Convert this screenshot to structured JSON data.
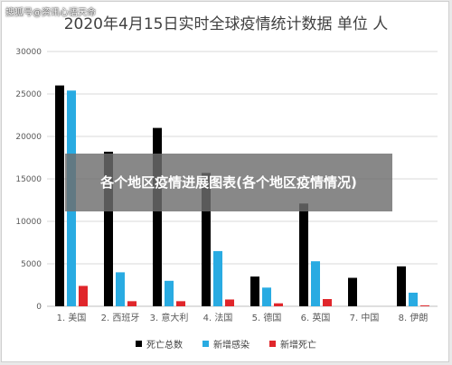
{
  "watermark": "搜狐号@资讯心语天命",
  "overlay_text": "各个地区疫情进展图表(各个地区疫情情况)",
  "colors": {
    "deaths": "#000000",
    "new_cases": "#29abe2",
    "new_deaths": "#e0262b"
  },
  "chart_data": {
    "type": "bar",
    "title": "2020年4月15日实时全球疫情统计数据 单位 人",
    "categories": [
      "1. 美国",
      "2. 西班牙",
      "3. 意大利",
      "4. 法国",
      "5. 德国",
      "6. 英国",
      "7. 中国",
      "8. 伊朗"
    ],
    "series": [
      {
        "name": "死亡总数",
        "values": [
          26000,
          18200,
          21000,
          15700,
          3500,
          12100,
          3350,
          4700
        ]
      },
      {
        "name": "新增感染",
        "values": [
          25400,
          4000,
          3000,
          6500,
          2200,
          5300,
          0,
          1600
        ]
      },
      {
        "name": "新增死亡",
        "values": [
          2400,
          600,
          600,
          800,
          350,
          850,
          0,
          100
        ]
      }
    ],
    "yticks": [
      0,
      5000,
      10000,
      15000,
      20000,
      25000,
      30000
    ],
    "ylim": [
      0,
      30000
    ],
    "grid": true,
    "legend": "bottom"
  }
}
